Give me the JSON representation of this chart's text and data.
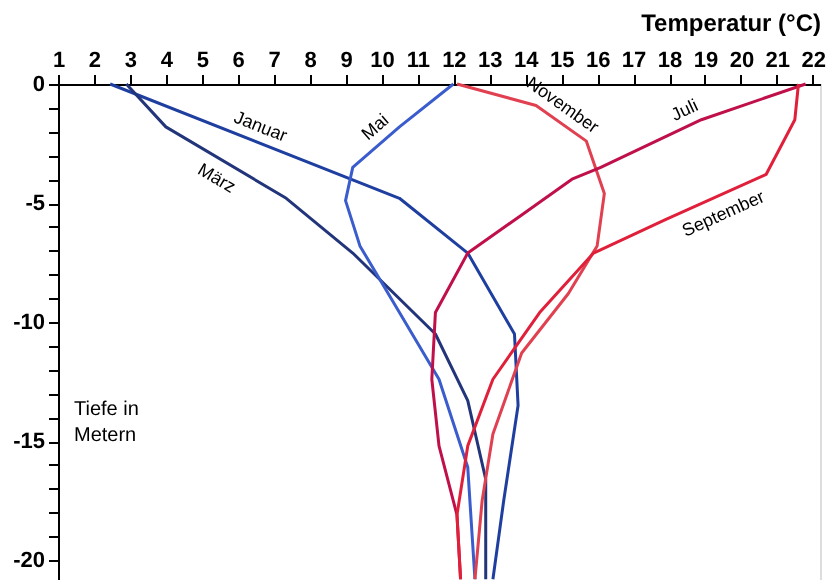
{
  "chart_data": {
    "type": "line",
    "xlabel": "Temperatur (°C)",
    "ylabel": "Tiefe in Metern",
    "xlim": [
      1,
      22.2
    ],
    "xticks": [
      1,
      2,
      3,
      4,
      5,
      6,
      7,
      8,
      9,
      10,
      11,
      12,
      13,
      14,
      15,
      16,
      17,
      18,
      19,
      20,
      21,
      22
    ],
    "ylim": [
      -21,
      0
    ],
    "yticks": [
      0,
      {
        "value": -1,
        "label": null
      },
      {
        "value": -2,
        "label": null
      },
      {
        "value": -3,
        "label": null
      },
      {
        "value": -4,
        "label": null
      },
      -5,
      {
        "value": -6,
        "label": null
      },
      {
        "value": -7,
        "label": null
      },
      {
        "value": -8,
        "label": null
      },
      {
        "value": -9,
        "label": null
      },
      -10,
      {
        "value": -11,
        "label": null
      },
      {
        "value": -12,
        "label": null
      },
      {
        "value": -13,
        "label": null
      },
      {
        "value": -14,
        "label": null
      },
      -15,
      {
        "value": -16,
        "label": null
      },
      {
        "value": -17,
        "label": null
      },
      {
        "value": -18,
        "label": null
      },
      {
        "value": -19,
        "label": null
      },
      -20
    ],
    "grid": false,
    "line_style": "solid",
    "marker": "none",
    "series": [
      {
        "name": "Januar",
        "color": "#1f3fa0",
        "x": [
          2.45,
          10.5,
          12.4,
          13.7,
          13.8,
          13.4,
          13.1
        ],
        "values": [
          0,
          -4.8,
          -7.1,
          -10.5,
          -13.5,
          -17.5,
          -20.8
        ]
      },
      {
        "name": "März",
        "color": "#23357a",
        "x": [
          2.9,
          4.0,
          7.35,
          9.2,
          11.5,
          12.4,
          12.9,
          12.9
        ],
        "values": [
          0,
          -1.8,
          -4.8,
          -7.1,
          -10.5,
          -13.3,
          -16.6,
          -20.8
        ]
      },
      {
        "name": "Mai",
        "color": "#3a5ccc",
        "x": [
          12.0,
          10.5,
          9.2,
          9.0,
          9.4,
          10.5,
          11.6,
          12.4,
          12.6
        ],
        "values": [
          0,
          -1.8,
          -3.5,
          -4.9,
          -6.8,
          -9.6,
          -12.4,
          -16.1,
          -20.8
        ]
      },
      {
        "name": "November",
        "color": "#e04050",
        "x": [
          12.1,
          14.3,
          15.7,
          16.2,
          16.0,
          15.2,
          13.9,
          13.1,
          12.8,
          12.6
        ],
        "values": [
          0,
          -0.9,
          -2.4,
          -4.6,
          -6.8,
          -8.8,
          -11.3,
          -14.7,
          -17.5,
          -20.8
        ]
      },
      {
        "name": "Juli",
        "color": "#c0104a",
        "x": [
          21.8,
          18.9,
          16.1,
          15.3,
          13.9,
          12.4,
          11.5,
          11.4,
          11.6,
          12.1,
          12.2
        ],
        "values": [
          0,
          -1.5,
          -3.5,
          -4.0,
          -5.5,
          -7.1,
          -9.6,
          -12.4,
          -15.2,
          -18.1,
          -20.8
        ]
      },
      {
        "name": "September",
        "color": "#e0203a",
        "x": [
          21.6,
          21.5,
          20.7,
          17.9,
          15.9,
          14.4,
          13.1,
          12.4,
          12.1,
          12.2
        ],
        "values": [
          0,
          -1.5,
          -3.8,
          -5.7,
          -7.1,
          -9.6,
          -12.4,
          -15.2,
          -18.1,
          -20.8
        ]
      }
    ]
  }
}
